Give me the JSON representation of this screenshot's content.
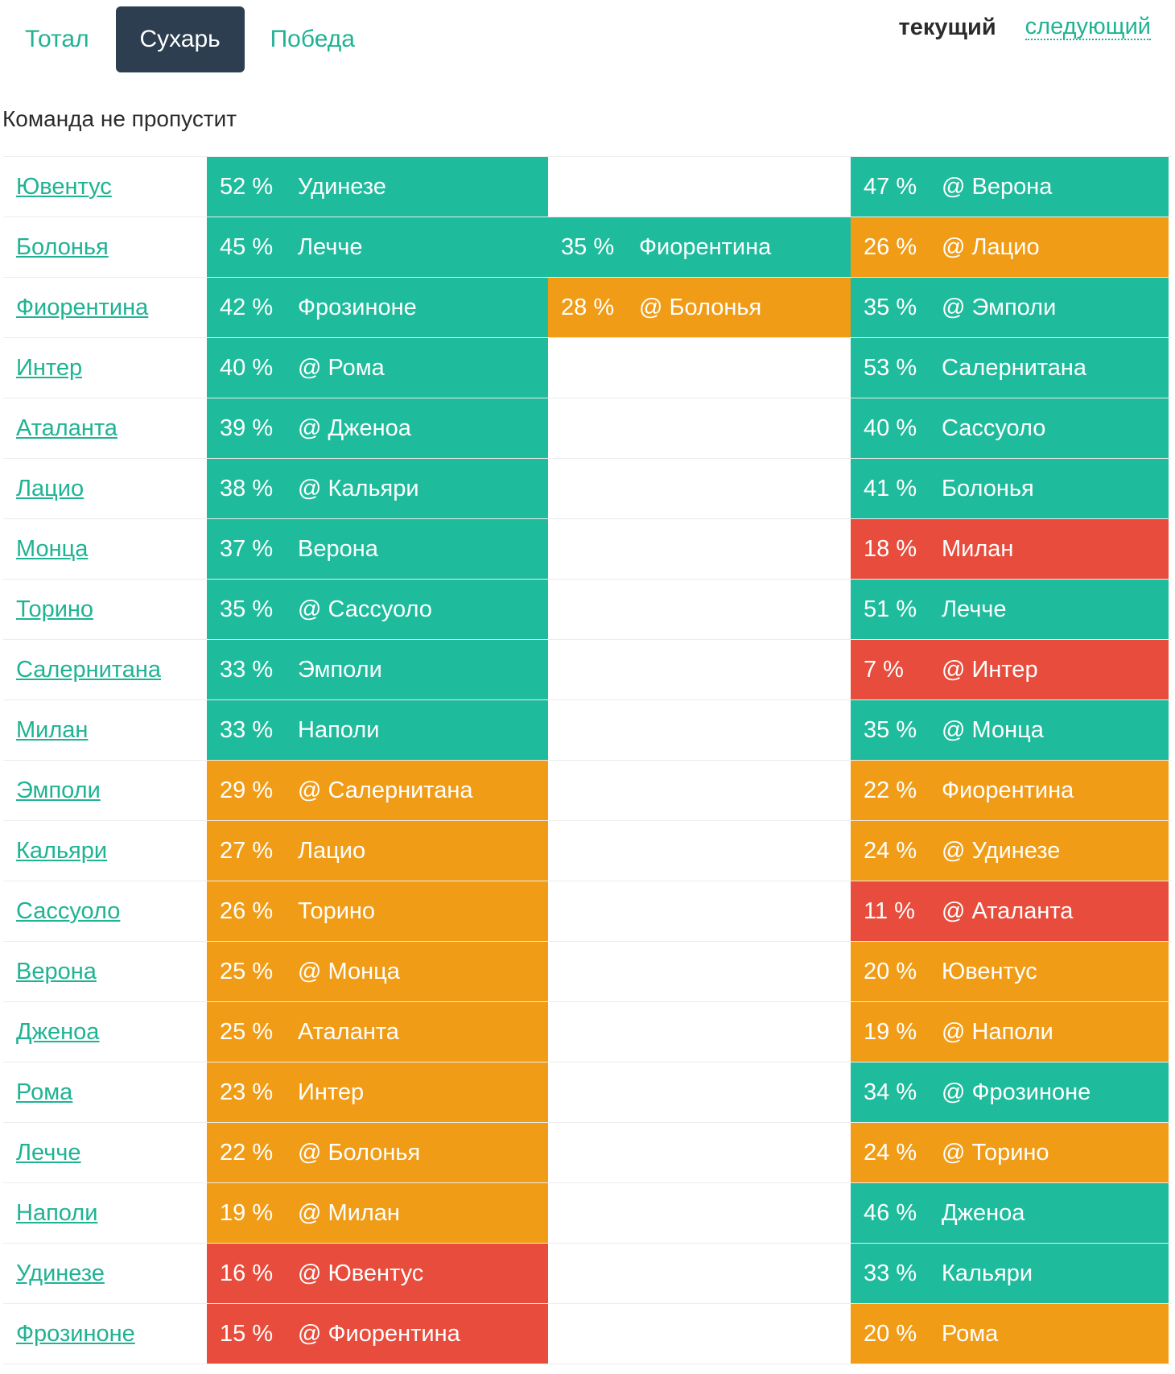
{
  "tabs": [
    {
      "label": "Тотал",
      "active": false
    },
    {
      "label": "Сухарь",
      "active": true
    },
    {
      "label": "Победа",
      "active": false
    }
  ],
  "round_switch": {
    "current": "текущий",
    "next": "следующий"
  },
  "subtitle": "Команда не пропустит",
  "colors": {
    "green": "#1ebc9c",
    "orange": "#f19c16",
    "red": "#e74c3c",
    "link": "#1fb393",
    "active_tab": "#2c3e50"
  },
  "rows": [
    {
      "team": "Ювентус",
      "current": {
        "pct": "52 %",
        "opp": "Удинезе",
        "color": "green"
      },
      "extra": null,
      "next": {
        "pct": "47 %",
        "opp": "@ Верона",
        "color": "green"
      }
    },
    {
      "team": "Болонья",
      "current": {
        "pct": "45 %",
        "opp": "Лечче",
        "color": "green"
      },
      "extra": {
        "pct": "35 %",
        "opp": "Фиорентина",
        "color": "green"
      },
      "next": {
        "pct": "26 %",
        "opp": "@ Лацио",
        "color": "orange"
      }
    },
    {
      "team": "Фиорентина",
      "current": {
        "pct": "42 %",
        "opp": "Фрозиноне",
        "color": "green"
      },
      "extra": {
        "pct": "28 %",
        "opp": "@ Болонья",
        "color": "orange"
      },
      "next": {
        "pct": "35 %",
        "opp": "@ Эмполи",
        "color": "green"
      }
    },
    {
      "team": "Интер",
      "current": {
        "pct": "40 %",
        "opp": "@ Рома",
        "color": "green"
      },
      "extra": null,
      "next": {
        "pct": "53 %",
        "opp": "Салернитана",
        "color": "green"
      }
    },
    {
      "team": "Аталанта",
      "current": {
        "pct": "39 %",
        "opp": "@ Дженоа",
        "color": "green"
      },
      "extra": null,
      "next": {
        "pct": "40 %",
        "opp": "Сассуоло",
        "color": "green"
      }
    },
    {
      "team": "Лацио",
      "current": {
        "pct": "38 %",
        "opp": "@ Кальяри",
        "color": "green"
      },
      "extra": null,
      "next": {
        "pct": "41 %",
        "opp": "Болонья",
        "color": "green"
      }
    },
    {
      "team": "Монца",
      "current": {
        "pct": "37 %",
        "opp": "Верона",
        "color": "green"
      },
      "extra": null,
      "next": {
        "pct": "18 %",
        "opp": "Милан",
        "color": "red"
      }
    },
    {
      "team": "Торино",
      "current": {
        "pct": "35 %",
        "opp": "@ Сассуоло",
        "color": "green"
      },
      "extra": null,
      "next": {
        "pct": "51 %",
        "opp": "Лечче",
        "color": "green"
      }
    },
    {
      "team": "Салернитана",
      "current": {
        "pct": "33 %",
        "opp": "Эмполи",
        "color": "green"
      },
      "extra": null,
      "next": {
        "pct": "7 %",
        "opp": "@ Интер",
        "color": "red"
      }
    },
    {
      "team": "Милан",
      "current": {
        "pct": "33 %",
        "opp": "Наполи",
        "color": "green"
      },
      "extra": null,
      "next": {
        "pct": "35 %",
        "opp": "@ Монца",
        "color": "green"
      }
    },
    {
      "team": "Эмполи",
      "current": {
        "pct": "29 %",
        "opp": "@ Салернитана",
        "color": "orange"
      },
      "extra": null,
      "next": {
        "pct": "22 %",
        "opp": "Фиорентина",
        "color": "orange"
      }
    },
    {
      "team": "Кальяри",
      "current": {
        "pct": "27 %",
        "opp": "Лацио",
        "color": "orange"
      },
      "extra": null,
      "next": {
        "pct": "24 %",
        "opp": "@ Удинезе",
        "color": "orange"
      }
    },
    {
      "team": "Сассуоло",
      "current": {
        "pct": "26 %",
        "opp": "Торино",
        "color": "orange"
      },
      "extra": null,
      "next": {
        "pct": "11 %",
        "opp": "@ Аталанта",
        "color": "red"
      }
    },
    {
      "team": "Верона",
      "current": {
        "pct": "25 %",
        "opp": "@ Монца",
        "color": "orange"
      },
      "extra": null,
      "next": {
        "pct": "20 %",
        "opp": "Ювентус",
        "color": "orange"
      }
    },
    {
      "team": "Дженоа",
      "current": {
        "pct": "25 %",
        "opp": "Аталанта",
        "color": "orange"
      },
      "extra": null,
      "next": {
        "pct": "19 %",
        "opp": "@ Наполи",
        "color": "orange"
      }
    },
    {
      "team": "Рома",
      "current": {
        "pct": "23 %",
        "opp": "Интер",
        "color": "orange"
      },
      "extra": null,
      "next": {
        "pct": "34 %",
        "opp": "@ Фрозиноне",
        "color": "green"
      }
    },
    {
      "team": "Лечче",
      "current": {
        "pct": "22 %",
        "opp": "@ Болонья",
        "color": "orange"
      },
      "extra": null,
      "next": {
        "pct": "24 %",
        "opp": "@ Торино",
        "color": "orange"
      }
    },
    {
      "team": "Наполи",
      "current": {
        "pct": "19 %",
        "opp": "@ Милан",
        "color": "orange"
      },
      "extra": null,
      "next": {
        "pct": "46 %",
        "opp": "Дженоа",
        "color": "green"
      }
    },
    {
      "team": "Удинезе",
      "current": {
        "pct": "16 %",
        "opp": "@ Ювентус",
        "color": "red"
      },
      "extra": null,
      "next": {
        "pct": "33 %",
        "opp": "Кальяри",
        "color": "green"
      }
    },
    {
      "team": "Фрозиноне",
      "current": {
        "pct": "15 %",
        "opp": "@ Фиорентина",
        "color": "red"
      },
      "extra": null,
      "next": {
        "pct": "20 %",
        "opp": "Рома",
        "color": "orange"
      }
    }
  ]
}
